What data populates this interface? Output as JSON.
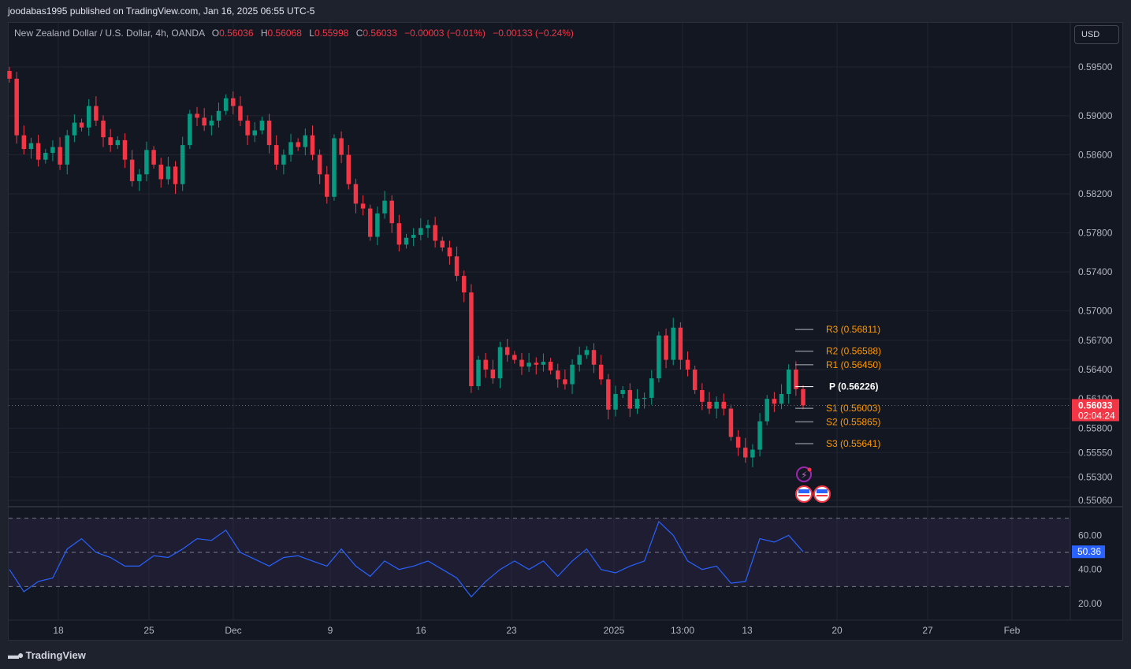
{
  "header": {
    "published": "joodabas1995 published on TradingView.com, Jan 16, 2025 06:55 UTC-5"
  },
  "legend": {
    "symbol": "New Zealand Dollar / U.S. Dollar, 4h, OANDA",
    "o_label": "O",
    "o": "0.56036",
    "h_label": "H",
    "h": "0.56068",
    "l_label": "L",
    "l": "0.55998",
    "c_label": "C",
    "c": "0.56033",
    "change": "−0.00003 (−0.01%)",
    "change2": "−0.00133 (−0.24%)"
  },
  "currency_button": "USD",
  "footer": {
    "brand": "TradingView"
  },
  "colors": {
    "up": "#089981",
    "down": "#f23645",
    "pivot": "#ff9800",
    "pivot_p": "#ffffff",
    "rsi": "#2962ff",
    "background": "#131722"
  },
  "chart_data": [
    {
      "type": "candlestick",
      "title": "New Zealand Dollar / U.S. Dollar, 4h, OANDA",
      "x_tick_labels": [
        "18",
        "25",
        "Dec",
        "9",
        "16",
        "23",
        "2025",
        "13:00",
        "13",
        "20",
        "27",
        "Feb"
      ],
      "y_tick_labels": [
        "0.59500",
        "0.59000",
        "0.58600",
        "0.58200",
        "0.57800",
        "0.57400",
        "0.57000",
        "0.56700",
        "0.56400",
        "0.56100",
        "0.55800",
        "0.55550",
        "0.55300",
        "0.55060"
      ],
      "ylim": [
        0.5506,
        0.595
      ],
      "grid": true,
      "closes": [
        0.5938,
        0.588,
        0.5866,
        0.5872,
        0.5855,
        0.5862,
        0.5868,
        0.585,
        0.588,
        0.5893,
        0.5888,
        0.591,
        0.5895,
        0.5878,
        0.587,
        0.5875,
        0.5855,
        0.5833,
        0.584,
        0.5865,
        0.585,
        0.5835,
        0.5848,
        0.583,
        0.587,
        0.5902,
        0.5898,
        0.589,
        0.5895,
        0.5905,
        0.5918,
        0.591,
        0.5895,
        0.588,
        0.5885,
        0.5895,
        0.587,
        0.585,
        0.586,
        0.5873,
        0.5868,
        0.588,
        0.586,
        0.584,
        0.5817,
        0.5877,
        0.586,
        0.583,
        0.581,
        0.5805,
        0.5776,
        0.58,
        0.5813,
        0.579,
        0.5768,
        0.5775,
        0.5778,
        0.5785,
        0.5788,
        0.5772,
        0.5765,
        0.5756,
        0.5736,
        0.5719,
        0.5623,
        0.565,
        0.564,
        0.5631,
        0.5663,
        0.5655,
        0.565,
        0.5643,
        0.5647,
        0.5645,
        0.5648,
        0.5639,
        0.563,
        0.5625,
        0.5645,
        0.5655,
        0.566,
        0.5645,
        0.563,
        0.5599,
        0.5615,
        0.5619,
        0.56,
        0.561,
        0.5611,
        0.5631,
        0.5675,
        0.565,
        0.5683,
        0.565,
        0.564,
        0.5619,
        0.5607,
        0.56,
        0.5607,
        0.56,
        0.5571,
        0.556,
        0.555,
        0.5558,
        0.5587,
        0.561,
        0.5605,
        0.5615,
        0.564,
        0.562,
        0.56033
      ],
      "last_price": {
        "value": 0.56033,
        "label": "0.56033",
        "countdown": "02:04:24"
      },
      "pivots": [
        {
          "name": "R3",
          "value": 0.56811,
          "label": "R3 (0.56811)"
        },
        {
          "name": "R2",
          "value": 0.56588,
          "label": "R2 (0.56588)"
        },
        {
          "name": "R1",
          "value": 0.5645,
          "label": "R1 (0.56450)"
        },
        {
          "name": "P",
          "value": 0.56226,
          "label": "P (0.56226)"
        },
        {
          "name": "S1",
          "value": 0.56003,
          "label": "S1 (0.56003)"
        },
        {
          "name": "S2",
          "value": 0.55865,
          "label": "S2 (0.55865)"
        },
        {
          "name": "S3",
          "value": 0.55641,
          "label": "S3 (0.55641)"
        }
      ]
    },
    {
      "type": "line",
      "y_tick_labels": [
        "60.00",
        "40.00",
        "20.00"
      ],
      "bands": [
        70,
        50,
        30
      ],
      "values": [
        40,
        27,
        33,
        35,
        52,
        58,
        50,
        47,
        42,
        42,
        48,
        47,
        52,
        58,
        57,
        63,
        50,
        46,
        42,
        47,
        48,
        45,
        42,
        52,
        42,
        36,
        45,
        40,
        42,
        45,
        40,
        35,
        24,
        33,
        40,
        45,
        40,
        45,
        36,
        45,
        52,
        40,
        38,
        42,
        45,
        68,
        60,
        45,
        40,
        42,
        32,
        33,
        58,
        56,
        60,
        50.36
      ],
      "last_value": {
        "value": 50.36,
        "label": "50.36"
      }
    }
  ]
}
